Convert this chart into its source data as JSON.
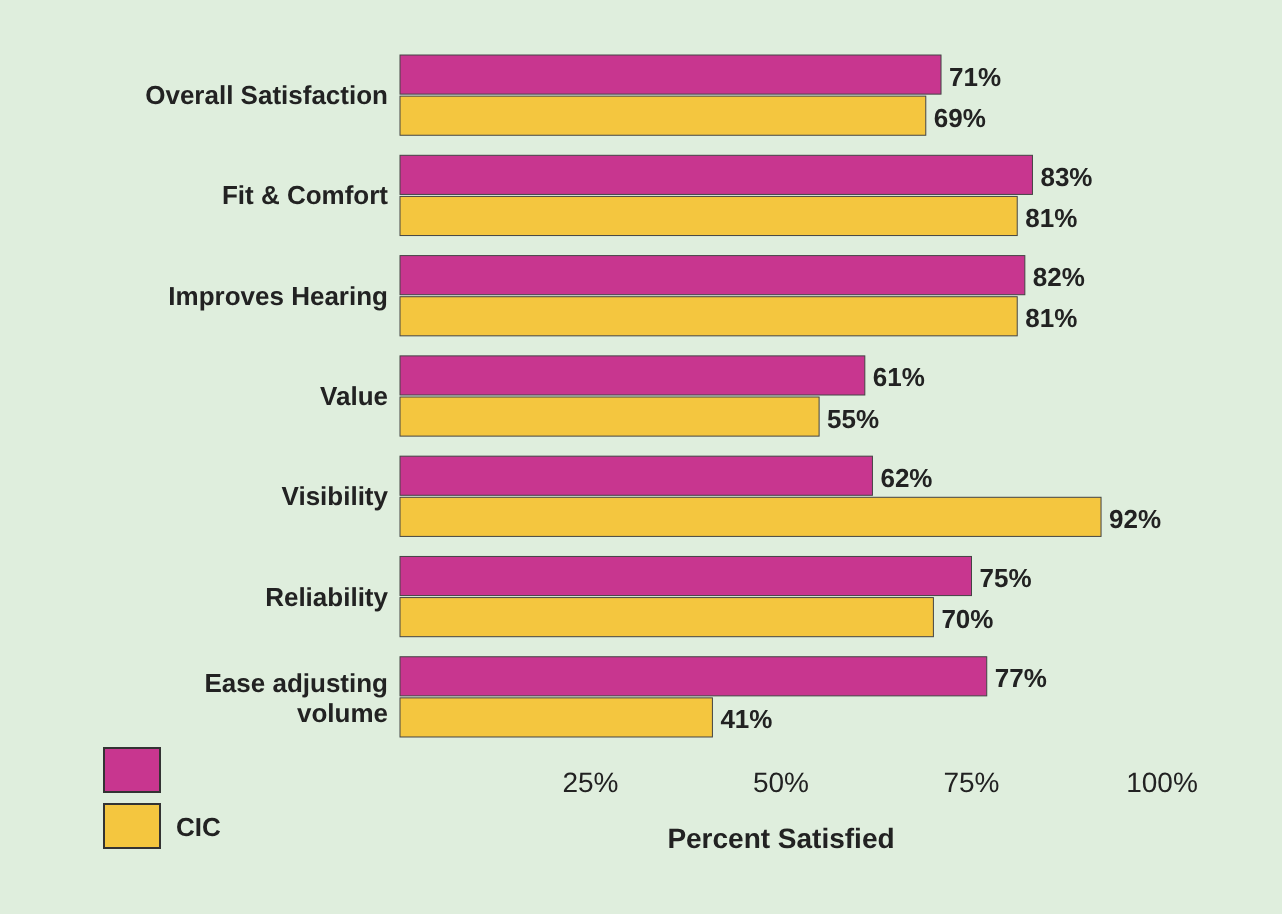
{
  "chart_data": {
    "type": "bar",
    "orientation": "horizontal",
    "xlabel": "Percent Satisfied",
    "categories": [
      "Overall Satisfaction",
      "Fit & Comfort",
      "Improves Hearing",
      "Value",
      "Visibility",
      "Reliability",
      "Ease adjusting volume"
    ],
    "series": [
      {
        "color": "#c8368f",
        "values": [
          71,
          83,
          82,
          61,
          62,
          75,
          77
        ],
        "value_labels": [
          "71%",
          "83%",
          "82%",
          "61%",
          "62%",
          "75%",
          "77%"
        ]
      },
      {
        "name": "CIC",
        "color": "#f4c63f",
        "values": [
          69,
          81,
          81,
          55,
          92,
          70,
          41
        ],
        "value_labels": [
          "69%",
          "81%",
          "81%",
          "55%",
          "92%",
          "70%",
          "41%"
        ]
      }
    ],
    "xlim": [
      0,
      100
    ],
    "xticks": [
      {
        "value": 25,
        "label": "25%"
      },
      {
        "value": 50,
        "label": "50%"
      },
      {
        "value": 75,
        "label": "75%"
      },
      {
        "value": 100,
        "label": "100%"
      }
    ],
    "legend": "bottom left",
    "grid": false
  }
}
